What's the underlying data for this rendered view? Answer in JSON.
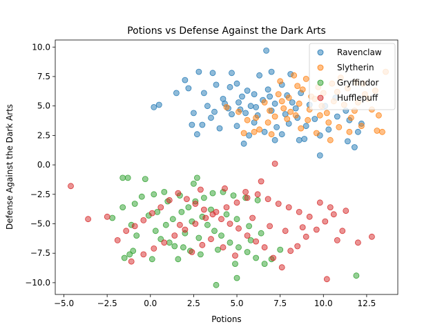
{
  "chart_data": {
    "type": "scatter",
    "title": "Potions vs Defense Against the Dark Arts",
    "xlabel": "Potions",
    "ylabel": "Defense Against the Dark Arts",
    "xlim": [
      -5.5,
      14.3
    ],
    "ylim": [
      -11.0,
      10.6
    ],
    "xticks": [
      -5.0,
      -2.5,
      0.0,
      2.5,
      5.0,
      7.5,
      10.0,
      12.5
    ],
    "xtick_labels": [
      "−5.0",
      "−2.5",
      "0.0",
      "2.5",
      "5.0",
      "7.5",
      "10.0",
      "12.5"
    ],
    "yticks": [
      -10.0,
      -7.5,
      -5.0,
      -2.5,
      0.0,
      2.5,
      5.0,
      7.5,
      10.0
    ],
    "ytick_labels": [
      "−10.0",
      "−7.5",
      "−5.0",
      "−2.5",
      "0.0",
      "2.5",
      "5.0",
      "7.5",
      "10.0"
    ],
    "grid": false,
    "legend_position": "top-right",
    "point_alpha": 0.5,
    "series": [
      {
        "name": "Ravenclaw",
        "color": "#1f77b4",
        "points": [
          [
            6.7,
            9.7
          ],
          [
            0.5,
            5.1
          ],
          [
            0.2,
            4.9
          ],
          [
            9.8,
            0.8
          ],
          [
            11.8,
            1.5
          ],
          [
            5.4,
            1.8
          ],
          [
            2.7,
            2.6
          ],
          [
            7.2,
            2.1
          ],
          [
            8.6,
            2.1
          ],
          [
            11.4,
            2.0
          ],
          [
            2.0,
            7.2
          ],
          [
            2.8,
            7.9
          ],
          [
            3.6,
            7.8
          ],
          [
            4.7,
            7.8
          ],
          [
            7.0,
            7.9
          ],
          [
            6.3,
            7.6
          ],
          [
            8.1,
            7.7
          ],
          [
            2.2,
            6.5
          ],
          [
            1.5,
            6.1
          ],
          [
            3.1,
            6.1
          ],
          [
            4.6,
            6.6
          ],
          [
            5.3,
            5.8
          ],
          [
            6.0,
            6.0
          ],
          [
            7.6,
            6.8
          ],
          [
            8.7,
            6.1
          ],
          [
            3.3,
            5.0
          ],
          [
            4.3,
            5.2
          ],
          [
            5.1,
            5.3
          ],
          [
            5.8,
            5.0
          ],
          [
            6.5,
            5.5
          ],
          [
            7.2,
            5.2
          ],
          [
            8.2,
            5.3
          ],
          [
            9.2,
            5.1
          ],
          [
            10.1,
            5.0
          ],
          [
            11.3,
            4.6
          ],
          [
            2.5,
            4.4
          ],
          [
            3.5,
            4.0
          ],
          [
            4.7,
            4.3
          ],
          [
            5.5,
            4.4
          ],
          [
            6.2,
            4.2
          ],
          [
            7.0,
            4.6
          ],
          [
            7.8,
            4.3
          ],
          [
            8.5,
            4.0
          ],
          [
            9.5,
            3.9
          ],
          [
            10.8,
            4.1
          ],
          [
            3.0,
            3.4
          ],
          [
            4.0,
            3.1
          ],
          [
            5.0,
            3.3
          ],
          [
            6.0,
            3.6
          ],
          [
            7.3,
            3.2
          ],
          [
            8.0,
            3.5
          ],
          [
            9.0,
            3.3
          ],
          [
            10.3,
            3.0
          ],
          [
            12.2,
            3.5
          ],
          [
            2.4,
            3.4
          ],
          [
            5.7,
            2.5
          ],
          [
            6.6,
            2.8
          ],
          [
            7.6,
            2.6
          ],
          [
            8.9,
            2.2
          ],
          [
            9.8,
            2.5
          ],
          [
            3.8,
            6.8
          ],
          [
            5.0,
            6.9
          ],
          [
            6.8,
            6.4
          ],
          [
            4.2,
            5.6
          ],
          [
            5.6,
            6.3
          ],
          [
            6.9,
            5.8
          ],
          [
            7.9,
            5.9
          ],
          [
            8.4,
            4.8
          ],
          [
            6.1,
            4.9
          ],
          [
            5.2,
            4.7
          ],
          [
            4.5,
            4.8
          ],
          [
            3.7,
            4.5
          ],
          [
            10.7,
            5.7
          ],
          [
            11.5,
            3.8
          ],
          [
            12.0,
            2.8
          ]
        ]
      },
      {
        "name": "Slytherin",
        "color": "#ff7f0e",
        "points": [
          [
            13.6,
            7.9
          ],
          [
            13.4,
            2.8
          ],
          [
            13.1,
            2.9
          ],
          [
            12.8,
            4.7
          ],
          [
            13.2,
            4.2
          ],
          [
            12.4,
            6.0
          ],
          [
            12.0,
            5.3
          ],
          [
            11.4,
            6.5
          ],
          [
            11.0,
            7.4
          ],
          [
            10.5,
            6.9
          ],
          [
            10.0,
            6.1
          ],
          [
            9.5,
            5.6
          ],
          [
            9.0,
            7.3
          ],
          [
            8.8,
            6.4
          ],
          [
            8.3,
            7.6
          ],
          [
            8.0,
            5.7
          ],
          [
            7.7,
            4.8
          ],
          [
            7.2,
            4.1
          ],
          [
            6.8,
            3.6
          ],
          [
            6.3,
            3.0
          ],
          [
            5.6,
            3.8
          ],
          [
            5.1,
            4.5
          ],
          [
            4.4,
            4.9
          ],
          [
            7.5,
            7.1
          ],
          [
            9.2,
            4.7
          ],
          [
            9.8,
            4.2
          ],
          [
            10.3,
            3.6
          ],
          [
            10.9,
            3.2
          ],
          [
            11.5,
            2.8
          ],
          [
            12.2,
            3.3
          ],
          [
            11.8,
            4.6
          ],
          [
            11.2,
            5.1
          ],
          [
            10.6,
            5.4
          ],
          [
            9.9,
            5.0
          ],
          [
            9.3,
            5.8
          ],
          [
            8.6,
            5.2
          ],
          [
            8.1,
            4.5
          ],
          [
            7.9,
            3.9
          ],
          [
            8.7,
            3.1
          ],
          [
            9.6,
            2.7
          ],
          [
            10.4,
            2.1
          ],
          [
            7.0,
            2.6
          ],
          [
            6.0,
            2.8
          ],
          [
            5.4,
            2.7
          ],
          [
            12.6,
            5.6
          ],
          [
            13.0,
            6.3
          ],
          [
            11.9,
            7.0
          ],
          [
            12.3,
            6.9
          ],
          [
            10.8,
            6.2
          ],
          [
            9.7,
            6.6
          ],
          [
            8.5,
            6.7
          ],
          [
            7.4,
            6.0
          ],
          [
            6.6,
            5.3
          ],
          [
            6.1,
            4.0
          ],
          [
            11.6,
            4.0
          ],
          [
            10.2,
            4.4
          ],
          [
            9.1,
            3.8
          ],
          [
            8.4,
            4.2
          ],
          [
            7.6,
            5.4
          ],
          [
            6.9,
            4.6
          ]
        ]
      },
      {
        "name": "Gryffindor",
        "color": "#2ca02c",
        "points": [
          [
            -1.6,
            -1.1
          ],
          [
            -1.3,
            -1.1
          ],
          [
            -0.3,
            -1.2
          ],
          [
            2.7,
            -1.1
          ],
          [
            2.5,
            -1.6
          ],
          [
            3.8,
            -10.2
          ],
          [
            5.0,
            -9.6
          ],
          [
            11.9,
            -9.4
          ],
          [
            -1.0,
            -7.3
          ],
          [
            -1.2,
            -7.6
          ],
          [
            -1.5,
            -7.9
          ],
          [
            -2.2,
            -4.5
          ],
          [
            -1.6,
            -3.6
          ],
          [
            -0.9,
            -3.3
          ],
          [
            -0.5,
            -2.7
          ],
          [
            0.2,
            -2.5
          ],
          [
            0.8,
            -2.3
          ],
          [
            -0.1,
            -4.3
          ],
          [
            0.3,
            -5.6
          ],
          [
            0.6,
            -6.3
          ],
          [
            1.1,
            -6.6
          ],
          [
            1.4,
            -6.9
          ],
          [
            1.9,
            -7.0
          ],
          [
            2.3,
            -7.3
          ],
          [
            2.9,
            -7.6
          ],
          [
            0.9,
            -5.1
          ],
          [
            1.3,
            -4.6
          ],
          [
            1.8,
            -4.0
          ],
          [
            2.2,
            -3.6
          ],
          [
            2.6,
            -3.1
          ],
          [
            3.1,
            -2.8
          ],
          [
            3.6,
            -2.4
          ],
          [
            4.2,
            -2.3
          ],
          [
            4.8,
            -2.6
          ],
          [
            5.5,
            -2.8
          ],
          [
            6.2,
            -3.0
          ],
          [
            3.3,
            -5.1
          ],
          [
            3.7,
            -5.6
          ],
          [
            4.1,
            -6.0
          ],
          [
            4.6,
            -6.6
          ],
          [
            5.1,
            -7.0
          ],
          [
            5.6,
            -7.4
          ],
          [
            6.1,
            -7.9
          ],
          [
            6.6,
            -8.4
          ],
          [
            7.0,
            -8.0
          ],
          [
            7.5,
            -7.2
          ],
          [
            1.6,
            -8.0
          ],
          [
            0.1,
            -8.0
          ],
          [
            -0.8,
            -6.0
          ],
          [
            -1.1,
            -5.1
          ],
          [
            2.0,
            -5.8
          ],
          [
            2.4,
            -4.8
          ],
          [
            3.0,
            -4.4
          ],
          [
            3.5,
            -3.8
          ],
          [
            4.4,
            -4.2
          ],
          [
            5.0,
            -4.6
          ],
          [
            5.7,
            -5.2
          ],
          [
            6.4,
            -5.8
          ],
          [
            1.0,
            -3.1
          ],
          [
            1.7,
            -2.6
          ],
          [
            0.4,
            -4.0
          ],
          [
            2.8,
            -6.2
          ],
          [
            3.9,
            -7.2
          ],
          [
            4.9,
            -8.4
          ],
          [
            5.8,
            -6.4
          ]
        ]
      },
      {
        "name": "Hufflepuff",
        "color": "#d62728",
        "points": [
          [
            -4.6,
            -1.8
          ],
          [
            -3.6,
            -4.6
          ],
          [
            -2.5,
            -4.4
          ],
          [
            7.2,
            0.1
          ],
          [
            10.2,
            -9.7
          ],
          [
            12.8,
            -6.1
          ],
          [
            12.0,
            -6.6
          ],
          [
            11.1,
            -5.6
          ],
          [
            10.8,
            -6.4
          ],
          [
            11.3,
            -3.9
          ],
          [
            10.6,
            -4.2
          ],
          [
            10.1,
            -4.8
          ],
          [
            9.6,
            -5.5
          ],
          [
            9.0,
            -6.1
          ],
          [
            8.5,
            -6.9
          ],
          [
            8.1,
            -7.3
          ],
          [
            7.6,
            -8.7
          ],
          [
            7.1,
            -7.9
          ],
          [
            6.6,
            -7.0
          ],
          [
            6.1,
            -6.5
          ],
          [
            5.6,
            -6.0
          ],
          [
            5.1,
            -5.4
          ],
          [
            4.6,
            -5.0
          ],
          [
            4.1,
            -4.6
          ],
          [
            3.6,
            -4.2
          ],
          [
            3.1,
            -3.8
          ],
          [
            2.6,
            -3.3
          ],
          [
            2.1,
            -2.9
          ],
          [
            1.6,
            -2.4
          ],
          [
            1.1,
            -3.0
          ],
          [
            0.6,
            -3.6
          ],
          [
            0.1,
            -4.1
          ],
          [
            -0.4,
            -4.7
          ],
          [
            -0.9,
            -5.2
          ],
          [
            -1.4,
            -5.6
          ],
          [
            -1.9,
            -6.4
          ],
          [
            -1.1,
            -8.2
          ],
          [
            -0.4,
            -7.6
          ],
          [
            0.2,
            -7.1
          ],
          [
            0.8,
            -6.6
          ],
          [
            1.4,
            -6.0
          ],
          [
            2.0,
            -5.5
          ],
          [
            2.6,
            -5.0
          ],
          [
            3.2,
            -4.5
          ],
          [
            3.8,
            -4.0
          ],
          [
            4.4,
            -3.6
          ],
          [
            5.0,
            -3.2
          ],
          [
            5.6,
            -2.8
          ],
          [
            6.2,
            -2.5
          ],
          [
            6.8,
            -2.9
          ],
          [
            7.4,
            -3.3
          ],
          [
            8.0,
            -3.6
          ],
          [
            8.6,
            -4.0
          ],
          [
            9.2,
            -4.4
          ],
          [
            9.8,
            -3.2
          ],
          [
            10.4,
            -3.6
          ],
          [
            2.9,
            -2.1
          ],
          [
            4.3,
            -2.0
          ],
          [
            5.5,
            -2.3
          ],
          [
            6.4,
            -1.4
          ],
          [
            3.5,
            -6.3
          ],
          [
            4.2,
            -7.0
          ],
          [
            4.9,
            -7.7
          ],
          [
            2.4,
            -7.4
          ],
          [
            1.7,
            -5.1
          ],
          [
            5.9,
            -4.5
          ],
          [
            6.9,
            -5.2
          ],
          [
            7.8,
            -5.6
          ],
          [
            8.8,
            -5.3
          ],
          [
            3.0,
            -6.8
          ]
        ]
      }
    ]
  }
}
